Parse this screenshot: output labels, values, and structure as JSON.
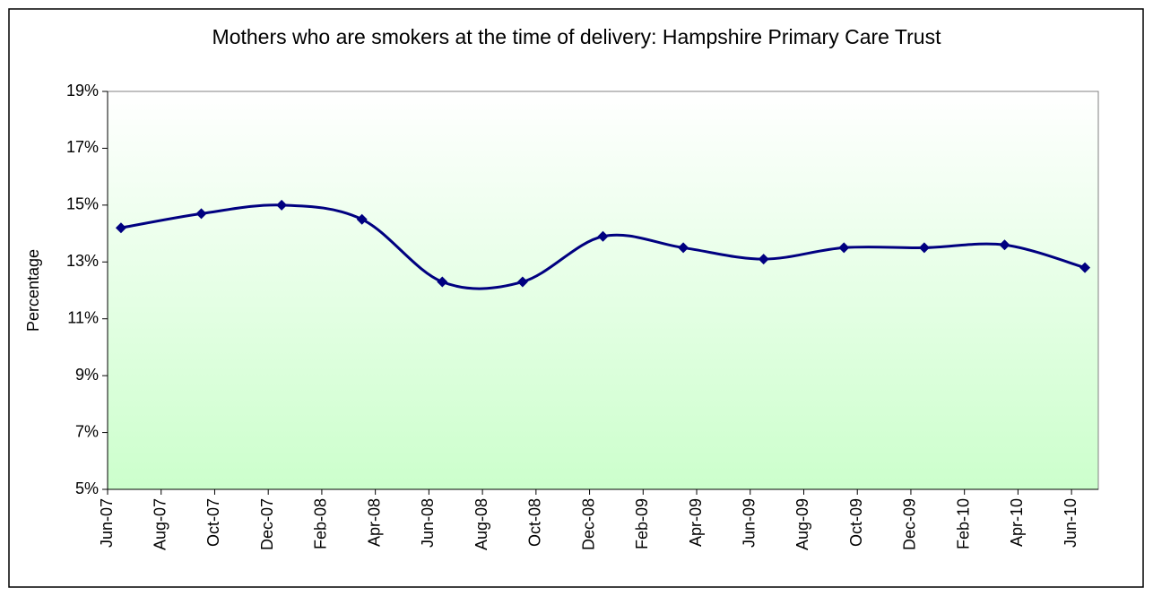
{
  "chart_data": {
    "type": "line",
    "title": "Mothers who are smokers at the time of delivery: Hampshire Primary Care Trust",
    "y_label": "Percentage",
    "x": [
      "Jun-07",
      "Sep-07",
      "Dec-07",
      "Mar-08",
      "Jun-08",
      "Sep-08",
      "Dec-08",
      "Mar-09",
      "Jun-09",
      "Sep-09",
      "Dec-09",
      "Mar-10",
      "Jun-10"
    ],
    "series": [
      {
        "name": "Percentage",
        "color": "#000080",
        "values": [
          14.2,
          14.7,
          15.0,
          14.5,
          12.3,
          12.3,
          13.9,
          13.5,
          13.1,
          13.5,
          13.5,
          13.6,
          12.8
        ]
      }
    ],
    "xlim": [
      "Jun-07",
      "Jul-10"
    ],
    "xticks": [
      "Jun-07",
      "Aug-07",
      "Oct-07",
      "Dec-07",
      "Feb-08",
      "Apr-08",
      "Jun-08",
      "Aug-08",
      "Oct-08",
      "Dec-08",
      "Feb-09",
      "Apr-09",
      "Jun-09",
      "Aug-09",
      "Oct-09",
      "Dec-09",
      "Feb-10",
      "Apr-10",
      "Jun-10"
    ],
    "ylim": [
      5,
      19
    ],
    "yticks": [
      {
        "value": 5,
        "label": "5%"
      },
      {
        "value": 7,
        "label": "7%"
      },
      {
        "value": 9,
        "label": "9%"
      },
      {
        "value": 11,
        "label": "11%"
      },
      {
        "value": 13,
        "label": "13%"
      },
      {
        "value": 15,
        "label": "15%"
      },
      {
        "value": 17,
        "label": "17%"
      },
      {
        "value": 19,
        "label": "19%"
      }
    ],
    "grid": false
  }
}
